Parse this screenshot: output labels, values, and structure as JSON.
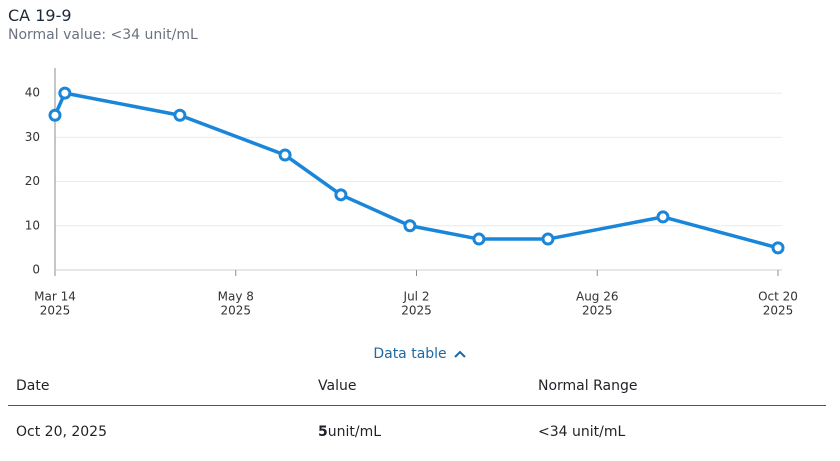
{
  "chart_data": {
    "type": "line",
    "title": "CA 19-9",
    "subtitle": "Normal value: <34 unit/mL",
    "x": [
      "2025-03-14",
      "2025-03-17",
      "2025-04-21",
      "2025-05-23",
      "2025-06-09",
      "2025-06-30",
      "2025-07-21",
      "2025-08-11",
      "2025-09-15",
      "2025-10-20"
    ],
    "values": [
      35,
      40,
      35,
      26,
      17,
      10,
      7,
      7,
      12,
      5
    ],
    "color": "#1a86d9",
    "xlim": [
      "2025-03-14",
      "2025-10-20"
    ],
    "xticks": [
      {
        "value": "2025-03-14",
        "label": [
          "Mar 14",
          "2025"
        ]
      },
      {
        "value": "2025-05-08",
        "label": [
          "May 8",
          "2025"
        ]
      },
      {
        "value": "2025-07-02",
        "label": [
          "Jul 2",
          "2025"
        ]
      },
      {
        "value": "2025-08-26",
        "label": [
          "Aug 26",
          "2025"
        ]
      },
      {
        "value": "2025-10-20",
        "label": [
          "Oct 20",
          "2025"
        ]
      }
    ],
    "ylim": [
      0,
      45
    ],
    "yticks": [
      0,
      10,
      20,
      30,
      40
    ],
    "grid": true
  },
  "table": {
    "toggle": "Data table",
    "headers": [
      "Date",
      "Value",
      "Normal Range"
    ],
    "rows": [
      {
        "date": "Oct 20, 2025",
        "value": "5",
        "unit": "unit/mL",
        "range": "<34 unit/mL"
      }
    ]
  }
}
